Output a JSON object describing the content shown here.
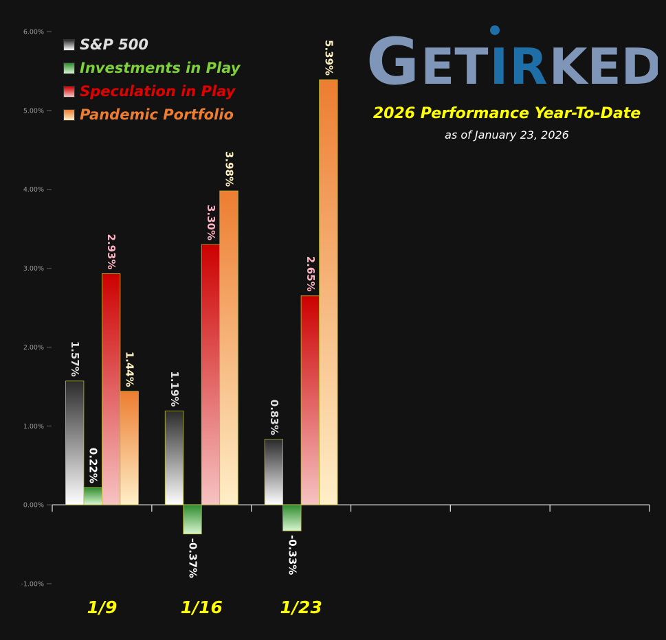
{
  "chart_data": {
    "type": "bar",
    "title": "2026 Performance Year-To-Date",
    "subtitle": "as of January 23, 2026",
    "categories": [
      "1/9",
      "1/16",
      "1/23"
    ],
    "series": [
      {
        "name": "S&P 500",
        "values": [
          1.57,
          1.19,
          0.83
        ],
        "labels": [
          "1.57%",
          "1.19%",
          "0.83%"
        ],
        "color": "#2b2b2b",
        "color_light": "#ffffff",
        "label_color": "#e0e0e0"
      },
      {
        "name": "Investments in Play",
        "values": [
          0.22,
          -0.37,
          -0.33
        ],
        "labels": [
          "0.22%",
          "-0.37%",
          "-0.33%"
        ],
        "color": "#2e8b2e",
        "color_light": "#d8f5d0",
        "label_color": "#ffffff"
      },
      {
        "name": "Speculation in Play",
        "values": [
          2.93,
          3.3,
          2.65
        ],
        "labels": [
          "2.93%",
          "3.30%",
          "2.65%"
        ],
        "color": "#cc0000",
        "color_light": "#f7c3c3",
        "label_color": "#ffb3c1"
      },
      {
        "name": "Pandemic Portfolio",
        "values": [
          1.44,
          3.98,
          5.39
        ],
        "labels": [
          "1.44%",
          "3.98%",
          "5.39%"
        ],
        "color": "#ed7d31",
        "color_light": "#ffefc8",
        "label_color": "#fff3c4"
      }
    ],
    "ylim": [
      -1.0,
      6.0
    ],
    "yticks": [
      "-1.00%",
      "0.00%",
      "1.00%",
      "2.00%",
      "3.00%",
      "4.00%",
      "5.00%",
      "6.00%"
    ],
    "total_slots": 6,
    "grid": false,
    "legend": "top-left"
  },
  "logo": {
    "text": "GETIRKED"
  },
  "colors": {
    "background": "#121212",
    "headline": "#ffff00",
    "category_label": "#ffff00",
    "legend_sp": "#e0e0e0",
    "legend_iip": "#7fd13b",
    "legend_sip": "#e00000",
    "legend_pp": "#ed7d31",
    "logo_main": "#7f96b8",
    "logo_accent": "#1e6fa8"
  }
}
